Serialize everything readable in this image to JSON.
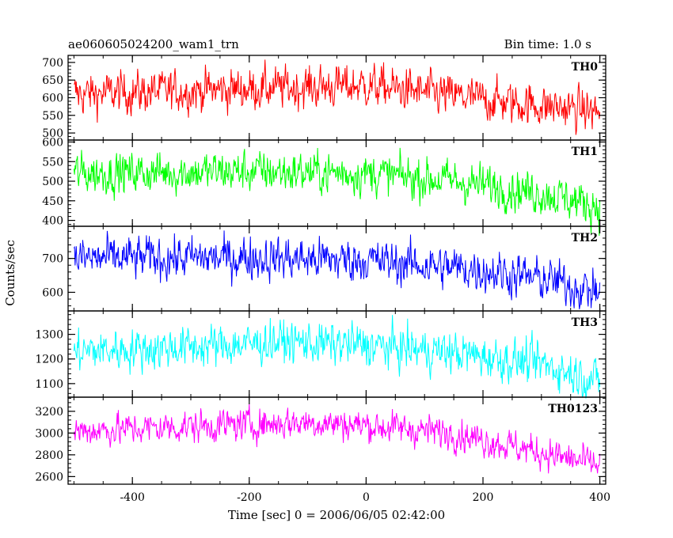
{
  "header": {
    "left_title": "ae060605024200_wam1_trn",
    "right_title": "Bin time: 1.0 s"
  },
  "ylabel": "Counts/sec",
  "xlabel": "Time [sec] 0 = 2006/06/05 02:42:00",
  "chart_data": {
    "type": "line",
    "x_range": [
      -510,
      410
    ],
    "x_ticks": [
      -400,
      -200,
      0,
      200,
      400
    ],
    "x_step": 1,
    "panels": [
      {
        "name": "TH0",
        "color": "#ff0000",
        "ylim": [
          480,
          720
        ],
        "yticks": [
          500,
          550,
          600,
          650,
          700
        ],
        "trend": [
          [
            -500,
            610
          ],
          [
            -200,
            625
          ],
          [
            0,
            635
          ],
          [
            200,
            595
          ],
          [
            400,
            560
          ]
        ],
        "noise": 28
      },
      {
        "name": "TH1",
        "color": "#00ff00",
        "ylim": [
          385,
          605
        ],
        "yticks": [
          400,
          450,
          500,
          550,
          600
        ],
        "trend": [
          [
            -500,
            520
          ],
          [
            -200,
            525
          ],
          [
            0,
            520
          ],
          [
            150,
            500
          ],
          [
            300,
            470
          ],
          [
            400,
            435
          ]
        ],
        "noise": 25
      },
      {
        "name": "TH2",
        "color": "#0000ff",
        "ylim": [
          545,
          795
        ],
        "yticks": [
          600,
          700
        ],
        "trend": [
          [
            -500,
            700
          ],
          [
            -200,
            702
          ],
          [
            0,
            695
          ],
          [
            200,
            665
          ],
          [
            300,
            640
          ],
          [
            400,
            600
          ]
        ],
        "noise": 30
      },
      {
        "name": "TH3",
        "color": "#00ffff",
        "ylim": [
          1045,
          1395
        ],
        "yticks": [
          1100,
          1200,
          1300
        ],
        "trend": [
          [
            -500,
            1230
          ],
          [
            -200,
            1260
          ],
          [
            -150,
            1270
          ],
          [
            0,
            1255
          ],
          [
            150,
            1225
          ],
          [
            300,
            1180
          ],
          [
            400,
            1110
          ]
        ],
        "noise": 40
      },
      {
        "name": "TH0123",
        "color": "#ff00ff",
        "ylim": [
          2530,
          3330
        ],
        "yticks": [
          2600,
          2800,
          3000,
          3200
        ],
        "trend": [
          [
            -500,
            3020
          ],
          [
            -200,
            3080
          ],
          [
            -100,
            3100
          ],
          [
            0,
            3070
          ],
          [
            150,
            3000
          ],
          [
            250,
            2880
          ],
          [
            400,
            2700
          ]
        ],
        "noise": 70
      }
    ]
  }
}
